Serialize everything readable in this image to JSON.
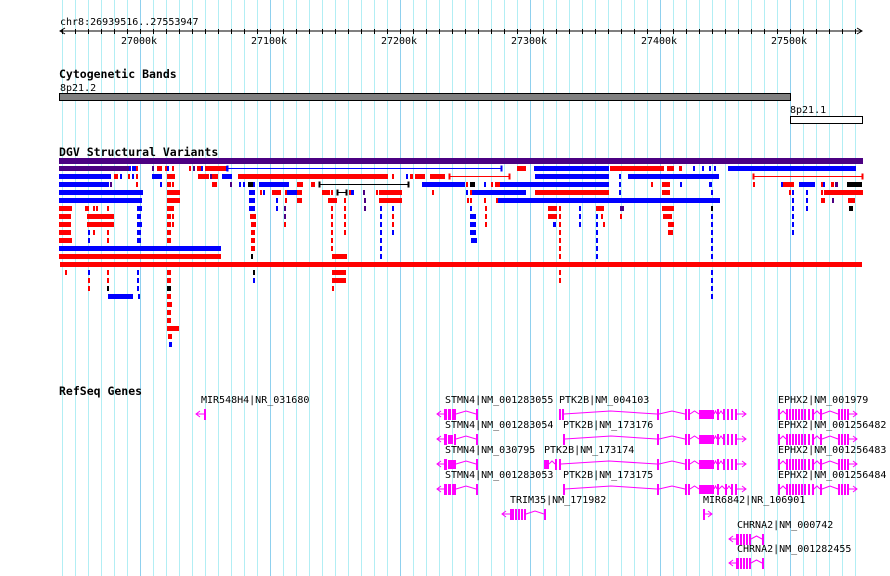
{
  "ruler": {
    "location": "chr8:26939516..27553947",
    "ticks": [
      "27000k",
      "27100k",
      "27200k",
      "27300k",
      "27400k",
      "27500k"
    ]
  },
  "tracks": {
    "cytobands": {
      "title": "Cytogenetic Bands",
      "bands": [
        {
          "name": "8p21.2",
          "color": "#808080"
        },
        {
          "name": "8p21.1",
          "color": "#ffffff"
        }
      ]
    },
    "dgv": {
      "title": "DGV Structural Variants",
      "colors": {
        "loss": "#ff0000",
        "gain": "#0000ff",
        "both": "#4b0082",
        "other": "#000000"
      }
    },
    "refseq": {
      "title": "RefSeq Genes",
      "color": "#ff00ff",
      "genes": [
        {
          "label": "MIR548H4|NR_031680"
        },
        {
          "label": "STMN4|NM_001283055"
        },
        {
          "label": "STMN4|NM_001283054"
        },
        {
          "label": "STMN4|NM_030795"
        },
        {
          "label": "STMN4|NM_001283053"
        },
        {
          "label": "PTK2B|NM_004103"
        },
        {
          "label": "PTK2B|NM_173176"
        },
        {
          "label": "PTK2B|NM_173174"
        },
        {
          "label": "PTK2B|NM_173175"
        },
        {
          "label": "TRIM35|NM_171982"
        },
        {
          "label": "MIR6842|NR_106901"
        },
        {
          "label": "CHRNA2|NM_000742"
        },
        {
          "label": "CHRNA2|NM_001282455"
        },
        {
          "label": "EPHX2|NM_001979"
        },
        {
          "label": "EPHX2|NM_001256482"
        },
        {
          "label": "EPHX2|NM_001256483"
        },
        {
          "label": "EPHX2|NM_001256484"
        }
      ]
    }
  }
}
